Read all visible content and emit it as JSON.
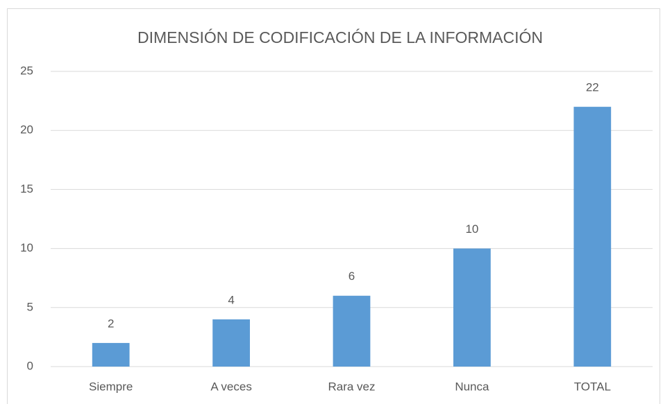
{
  "chart_data": {
    "type": "bar",
    "title": "DIMENSIÓN DE CODIFICACIÓN DE LA INFORMACIÓN",
    "categories": [
      "Siempre",
      "A veces",
      "Rara vez",
      "Nunca",
      "TOTAL"
    ],
    "values": [
      2,
      4,
      6,
      10,
      22
    ],
    "color": "#5b9bd5",
    "ylim": [
      0,
      25
    ],
    "yticks": [
      0,
      5,
      10,
      15,
      20,
      25
    ],
    "grid": true
  }
}
